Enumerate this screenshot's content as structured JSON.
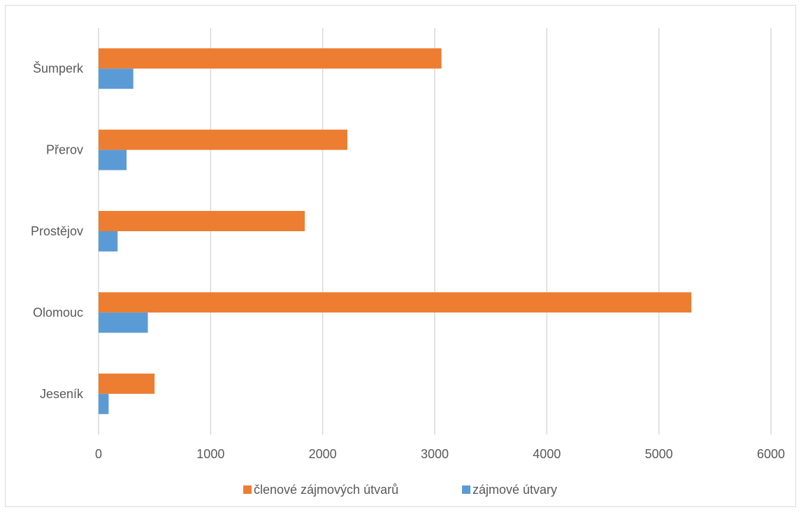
{
  "chart_data": {
    "type": "bar",
    "orientation": "horizontal",
    "categories": [
      "Jeseník",
      "Olomouc",
      "Prostějov",
      "Přerov",
      "Šumperk"
    ],
    "series": [
      {
        "name": "zájmové útvary",
        "values": [
          90,
          440,
          170,
          250,
          310
        ],
        "color": "#5b9bd5"
      },
      {
        "name": "členové zájmových útvarů",
        "values": [
          500,
          5290,
          1840,
          2220,
          3060
        ],
        "color": "#ed7d31"
      }
    ],
    "xlim": [
      0,
      6000
    ],
    "xticks": [
      "0",
      "1000",
      "2000",
      "3000",
      "4000",
      "5000",
      "6000"
    ],
    "grid": true,
    "legend_position": "bottom",
    "legend_order": [
      1,
      0
    ]
  }
}
